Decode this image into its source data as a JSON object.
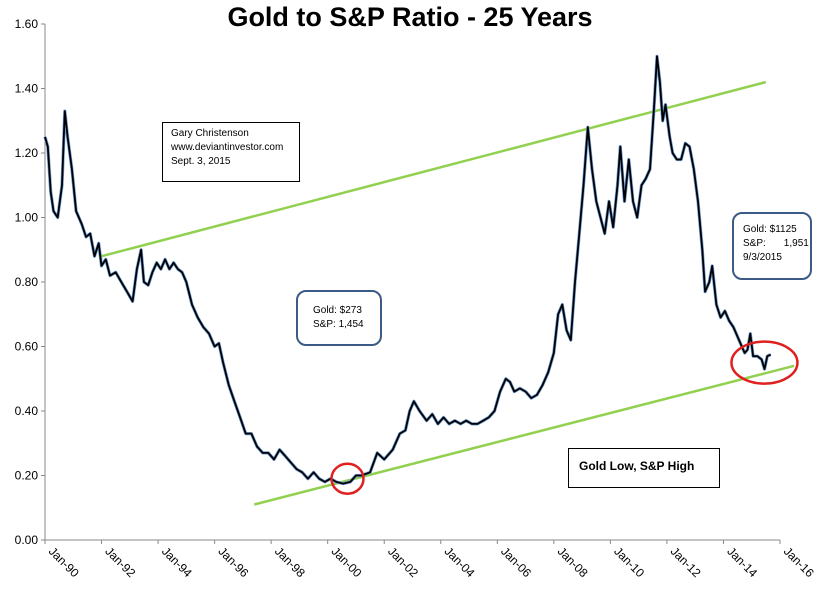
{
  "chart_data": {
    "type": "line",
    "title": "Gold to S&P Ratio - 25 Years",
    "xlabel": "",
    "ylabel": "",
    "xlim": [
      1990.0,
      2016.0
    ],
    "ylim": [
      0.0,
      1.6
    ],
    "grid": false,
    "y_ticks": [
      "0.00",
      "0.20",
      "0.40",
      "0.60",
      "0.80",
      "1.00",
      "1.20",
      "1.40",
      "1.60"
    ],
    "y_tick_values": [
      0.0,
      0.2,
      0.4,
      0.6,
      0.8,
      1.0,
      1.2,
      1.4,
      1.6
    ],
    "x_ticks": [
      "Jan-90",
      "Jan-92",
      "Jan-94",
      "Jan-96",
      "Jan-98",
      "Jan-00",
      "Jan-02",
      "Jan-04",
      "Jan-06",
      "Jan-08",
      "Jan-10",
      "Jan-12",
      "Jan-14",
      "Jan-16"
    ],
    "x_tick_values": [
      1990,
      1992,
      1994,
      1996,
      1998,
      2000,
      2002,
      2004,
      2006,
      2008,
      2010,
      2012,
      2014,
      2016
    ],
    "series": [
      {
        "color": "#000000",
        "points": [
          [
            1990.0,
            1.25
          ],
          [
            1990.1,
            1.22
          ],
          [
            1990.2,
            1.08
          ],
          [
            1990.3,
            1.02
          ],
          [
            1990.45,
            1.0
          ],
          [
            1990.6,
            1.1
          ],
          [
            1990.7,
            1.33
          ],
          [
            1990.8,
            1.25
          ],
          [
            1990.95,
            1.15
          ],
          [
            1991.1,
            1.02
          ],
          [
            1991.3,
            0.98
          ],
          [
            1991.45,
            0.94
          ],
          [
            1991.6,
            0.95
          ],
          [
            1991.75,
            0.88
          ],
          [
            1991.9,
            0.92
          ],
          [
            1992.0,
            0.85
          ],
          [
            1992.15,
            0.87
          ],
          [
            1992.3,
            0.82
          ],
          [
            1992.5,
            0.83
          ],
          [
            1992.7,
            0.8
          ],
          [
            1992.9,
            0.77
          ],
          [
            1993.1,
            0.74
          ],
          [
            1993.25,
            0.84
          ],
          [
            1993.4,
            0.9
          ],
          [
            1993.5,
            0.8
          ],
          [
            1993.65,
            0.79
          ],
          [
            1993.8,
            0.83
          ],
          [
            1993.95,
            0.86
          ],
          [
            1994.1,
            0.84
          ],
          [
            1994.25,
            0.87
          ],
          [
            1994.4,
            0.84
          ],
          [
            1994.55,
            0.86
          ],
          [
            1994.7,
            0.84
          ],
          [
            1994.85,
            0.83
          ],
          [
            1995.0,
            0.8
          ],
          [
            1995.2,
            0.73
          ],
          [
            1995.4,
            0.69
          ],
          [
            1995.6,
            0.66
          ],
          [
            1995.8,
            0.64
          ],
          [
            1996.0,
            0.6
          ],
          [
            1996.15,
            0.61
          ],
          [
            1996.3,
            0.55
          ],
          [
            1996.5,
            0.48
          ],
          [
            1996.7,
            0.43
          ],
          [
            1996.9,
            0.38
          ],
          [
            1997.1,
            0.33
          ],
          [
            1997.3,
            0.33
          ],
          [
            1997.5,
            0.29
          ],
          [
            1997.7,
            0.27
          ],
          [
            1997.9,
            0.27
          ],
          [
            1998.1,
            0.25
          ],
          [
            1998.3,
            0.28
          ],
          [
            1998.5,
            0.26
          ],
          [
            1998.7,
            0.24
          ],
          [
            1998.9,
            0.22
          ],
          [
            1999.1,
            0.21
          ],
          [
            1999.3,
            0.19
          ],
          [
            1999.5,
            0.21
          ],
          [
            1999.7,
            0.19
          ],
          [
            1999.9,
            0.18
          ],
          [
            2000.1,
            0.19
          ],
          [
            2000.3,
            0.18
          ],
          [
            2000.55,
            0.175
          ],
          [
            2000.8,
            0.18
          ],
          [
            2001.0,
            0.2
          ],
          [
            2001.2,
            0.2
          ],
          [
            2001.5,
            0.21
          ],
          [
            2001.75,
            0.27
          ],
          [
            2002.0,
            0.25
          ],
          [
            2002.3,
            0.28
          ],
          [
            2002.55,
            0.33
          ],
          [
            2002.75,
            0.34
          ],
          [
            2002.9,
            0.4
          ],
          [
            2003.05,
            0.43
          ],
          [
            2003.25,
            0.4
          ],
          [
            2003.5,
            0.37
          ],
          [
            2003.7,
            0.39
          ],
          [
            2003.9,
            0.36
          ],
          [
            2004.1,
            0.38
          ],
          [
            2004.3,
            0.36
          ],
          [
            2004.5,
            0.37
          ],
          [
            2004.7,
            0.36
          ],
          [
            2004.9,
            0.37
          ],
          [
            2005.1,
            0.36
          ],
          [
            2005.3,
            0.36
          ],
          [
            2005.5,
            0.37
          ],
          [
            2005.7,
            0.38
          ],
          [
            2005.9,
            0.4
          ],
          [
            2006.1,
            0.46
          ],
          [
            2006.3,
            0.5
          ],
          [
            2006.45,
            0.49
          ],
          [
            2006.6,
            0.46
          ],
          [
            2006.8,
            0.47
          ],
          [
            2007.0,
            0.46
          ],
          [
            2007.2,
            0.44
          ],
          [
            2007.4,
            0.45
          ],
          [
            2007.6,
            0.48
          ],
          [
            2007.8,
            0.52
          ],
          [
            2008.0,
            0.58
          ],
          [
            2008.15,
            0.7
          ],
          [
            2008.3,
            0.73
          ],
          [
            2008.45,
            0.65
          ],
          [
            2008.6,
            0.62
          ],
          [
            2008.75,
            0.8
          ],
          [
            2008.9,
            0.95
          ],
          [
            2009.05,
            1.1
          ],
          [
            2009.2,
            1.28
          ],
          [
            2009.35,
            1.15
          ],
          [
            2009.5,
            1.05
          ],
          [
            2009.65,
            1.0
          ],
          [
            2009.8,
            0.95
          ],
          [
            2009.95,
            1.05
          ],
          [
            2010.1,
            0.97
          ],
          [
            2010.25,
            1.1
          ],
          [
            2010.35,
            1.22
          ],
          [
            2010.5,
            1.05
          ],
          [
            2010.65,
            1.18
          ],
          [
            2010.8,
            1.05
          ],
          [
            2010.95,
            1.0
          ],
          [
            2011.1,
            1.1
          ],
          [
            2011.25,
            1.12
          ],
          [
            2011.4,
            1.15
          ],
          [
            2011.55,
            1.35
          ],
          [
            2011.65,
            1.5
          ],
          [
            2011.75,
            1.42
          ],
          [
            2011.85,
            1.3
          ],
          [
            2011.95,
            1.35
          ],
          [
            2012.1,
            1.25
          ],
          [
            2012.2,
            1.2
          ],
          [
            2012.35,
            1.18
          ],
          [
            2012.5,
            1.18
          ],
          [
            2012.65,
            1.23
          ],
          [
            2012.8,
            1.22
          ],
          [
            2012.95,
            1.15
          ],
          [
            2013.1,
            1.05
          ],
          [
            2013.25,
            0.9
          ],
          [
            2013.35,
            0.77
          ],
          [
            2013.5,
            0.8
          ],
          [
            2013.6,
            0.85
          ],
          [
            2013.75,
            0.73
          ],
          [
            2013.9,
            0.69
          ],
          [
            2014.05,
            0.71
          ],
          [
            2014.2,
            0.68
          ],
          [
            2014.35,
            0.66
          ],
          [
            2014.5,
            0.63
          ],
          [
            2014.65,
            0.6
          ],
          [
            2014.75,
            0.58
          ],
          [
            2014.85,
            0.59
          ],
          [
            2014.95,
            0.64
          ],
          [
            2015.05,
            0.57
          ],
          [
            2015.2,
            0.57
          ],
          [
            2015.35,
            0.56
          ],
          [
            2015.45,
            0.53
          ],
          [
            2015.55,
            0.57
          ],
          [
            2015.67,
            0.575
          ]
        ]
      }
    ],
    "trendlines": [
      {
        "color": "#92d050",
        "points": [
          [
            1992.0,
            0.88
          ],
          [
            2015.5,
            1.42
          ]
        ]
      },
      {
        "color": "#92d050",
        "points": [
          [
            1997.4,
            0.11
          ],
          [
            2016.5,
            0.54
          ]
        ]
      }
    ],
    "circles": [
      {
        "color": "#e02020",
        "center": [
          2000.7,
          0.19
        ]
      },
      {
        "color": "#e02020",
        "center": [
          2015.45,
          0.55
        ]
      }
    ]
  },
  "annotations": {
    "credit": [
      "Gary Christenson",
      "www.deviantinvestor.com",
      "Sept. 3, 2015"
    ],
    "callout_2000": {
      "gold": "Gold:  $273",
      "sp": "S&P: 1,454"
    },
    "callout_2015": {
      "gold": "Gold:  $1125",
      "sp_label": "S&P:",
      "sp_value": "1,951",
      "date": "9/3/2015"
    },
    "low_high": "Gold Low, S&P High"
  }
}
